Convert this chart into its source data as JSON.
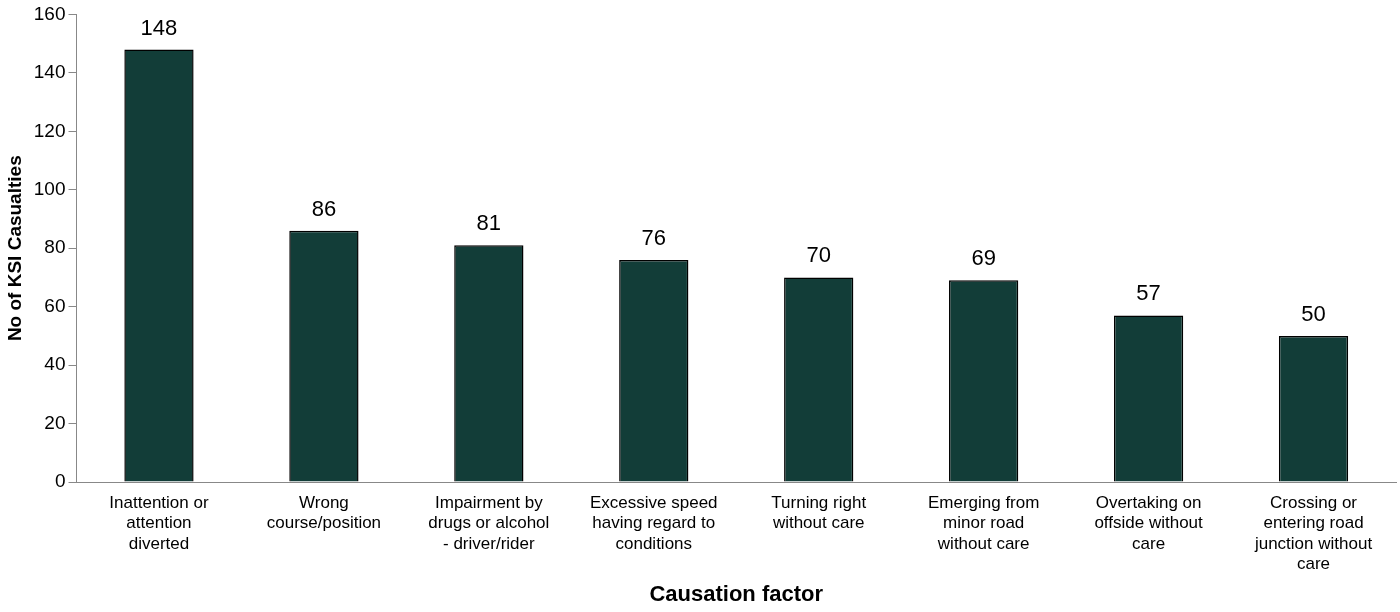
{
  "chart_data": {
    "type": "bar",
    "xlabel": "Causation factor",
    "ylabel": "No of KSI Casualties",
    "categories": [
      "Inattention or attention diverted",
      "Wrong course/position",
      "Impairment by drugs or alcohol - driver/rider",
      "Excessive speed having regard to conditions",
      "Turning right without care",
      "Emerging from minor road without care",
      "Overtaking on offside without care",
      "Crossing or entering road junction without care"
    ],
    "values": [
      148,
      86,
      81,
      76,
      70,
      69,
      57,
      50
    ],
    "color": "#123d38",
    "ylim": [
      0,
      160
    ],
    "yticks": [
      0,
      20,
      40,
      60,
      80,
      100,
      120,
      140,
      160
    ],
    "grid": false,
    "data_labels": true,
    "legend": false
  }
}
